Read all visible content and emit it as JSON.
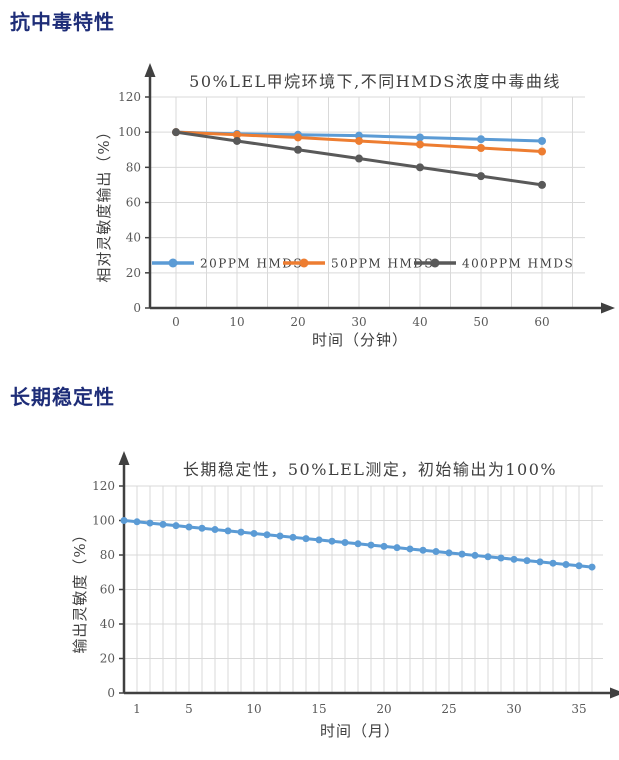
{
  "theme": {
    "heading_color": "#1E2D78",
    "grid_color": "#D9D9D9",
    "axis_color": "#404040",
    "tick_label_color": "#595959"
  },
  "sections": [
    {
      "heading": "抗中毒特性"
    },
    {
      "heading": "长期稳定性"
    }
  ],
  "chart_data": [
    {
      "type": "line",
      "title": "50%LEL甲烷环境下,不同HMDS浓度中毒曲线",
      "xlabel": "时间（分钟）",
      "ylabel": "相对灵敏度输出（%）",
      "x": [
        0,
        10,
        20,
        30,
        40,
        50,
        60
      ],
      "xticks": [
        0,
        10,
        20,
        30,
        40,
        50,
        60
      ],
      "yticks": [
        0,
        20,
        40,
        60,
        80,
        100,
        120
      ],
      "ylim": [
        0,
        120
      ],
      "grid": true,
      "grid_x_step": 5,
      "legend_position": "inside-bottom",
      "series": [
        {
          "name": "20PPM HMDS",
          "color": "#5B9BD5",
          "values": [
            100,
            99,
            98.5,
            98,
            97,
            96,
            95
          ]
        },
        {
          "name": "50PPM HMDS",
          "color": "#ED7D31",
          "values": [
            100,
            98.5,
            97,
            95,
            93,
            91,
            89
          ]
        },
        {
          "name": "400PPM HMDS",
          "color": "#595959",
          "values": [
            100,
            95,
            90,
            85,
            80,
            75,
            70
          ]
        }
      ]
    },
    {
      "type": "line",
      "title": "长期稳定性，50%LEL测定，初始输出为100%",
      "xlabel": "时间（月）",
      "ylabel": "输出灵敏度（%）",
      "x": [
        0,
        1,
        2,
        3,
        4,
        5,
        6,
        7,
        8,
        9,
        10,
        11,
        12,
        13,
        14,
        15,
        16,
        17,
        18,
        19,
        20,
        21,
        22,
        23,
        24,
        25,
        26,
        27,
        28,
        29,
        30,
        31,
        32,
        33,
        34,
        35,
        36
      ],
      "xticks": [
        1,
        5,
        10,
        15,
        20,
        25,
        30,
        35
      ],
      "yticks": [
        0,
        20,
        40,
        60,
        80,
        100,
        120
      ],
      "ylim": [
        0,
        120
      ],
      "grid": true,
      "grid_x_step": 1,
      "legend_position": "none",
      "series": [
        {
          "name": "",
          "color": "#5B9BD5",
          "values": [
            100,
            99.25,
            98.5,
            97.75,
            97,
            96.25,
            95.5,
            94.75,
            94,
            93.25,
            92.5,
            91.75,
            91,
            90.25,
            89.5,
            88.75,
            88,
            87.25,
            86.5,
            85.75,
            85,
            84.25,
            83.5,
            82.75,
            82,
            81.25,
            80.5,
            79.75,
            79,
            78.25,
            77.5,
            76.75,
            76,
            75.25,
            74.5,
            73.75,
            73
          ]
        }
      ]
    }
  ]
}
